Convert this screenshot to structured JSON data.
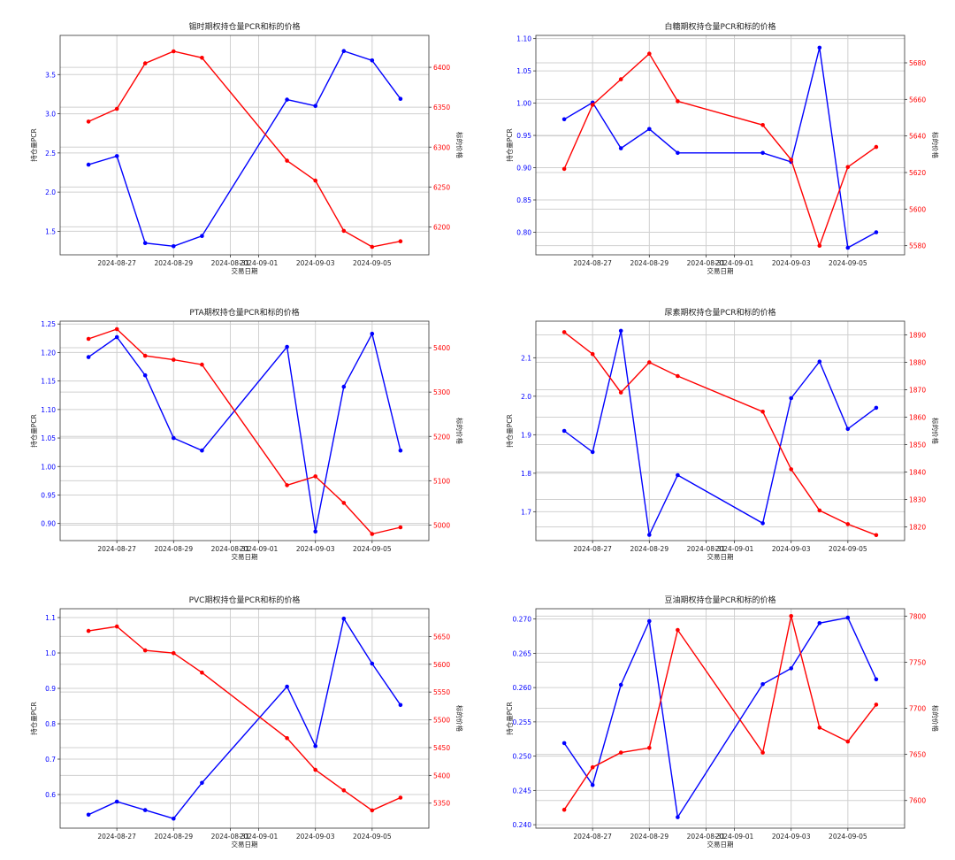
{
  "colors": {
    "pcr": "#0000ff",
    "price": "#ff0000",
    "grid": "#d0d0d0",
    "axis": "#333333"
  },
  "chart_data": [
    {
      "type": "line",
      "title": "锡时期权持仓量PCR和标的价格",
      "xlabel": "交易日期",
      "ylabel": "持仓量PCR",
      "ylabel_right": "标的价格",
      "x_ticks": [
        "2024-08-27",
        "2024-08-29",
        "2024-08-31",
        "2024-09-01",
        "2024-09-03",
        "2024-09-05"
      ],
      "x": [
        "2024-08-26",
        "2024-08-27",
        "2024-08-28",
        "2024-08-29",
        "2024-08-30",
        "2024-09-02",
        "2024-09-03",
        "2024-09-04",
        "2024-09-05",
        "2024-09-06"
      ],
      "xlim": [
        "2024-08-25",
        "2024-09-07"
      ],
      "grid": true,
      "ylim": [
        1.2,
        4.0
      ],
      "y_ticks": [
        1.5,
        2.0,
        2.5,
        3.0,
        3.5
      ],
      "y_tick_labels": [
        "1.5",
        "2.0",
        "2.5",
        "3.0",
        "3.5"
      ],
      "ylim_right": [
        6165,
        6440
      ],
      "y_ticks_right": [
        6200,
        6250,
        6300,
        6350,
        6400
      ],
      "y_tick_labels_right": [
        "6200",
        "6250",
        "6300",
        "6350",
        "6400"
      ],
      "series": [
        {
          "values": [
            2.35,
            2.46,
            1.35,
            1.31,
            1.44,
            3.18,
            3.1,
            3.8,
            3.68,
            3.19
          ],
          "axis": "left"
        },
        {
          "values": [
            6332,
            6348,
            6405,
            6420,
            6412,
            6283,
            6258,
            6195,
            6175,
            6182
          ],
          "axis": "right"
        }
      ]
    },
    {
      "type": "line",
      "title": "白糖期权持仓量PCR和标的价格",
      "xlabel": "交易日期",
      "ylabel": "持仓量PCR",
      "ylabel_right": "标的价格",
      "x_ticks": [
        "2024-08-27",
        "2024-08-29",
        "2024-08-31",
        "2024-09-01",
        "2024-09-03",
        "2024-09-05"
      ],
      "x": [
        "2024-08-26",
        "2024-08-27",
        "2024-08-28",
        "2024-08-29",
        "2024-08-30",
        "2024-09-02",
        "2024-09-03",
        "2024-09-04",
        "2024-09-05",
        "2024-09-06"
      ],
      "xlim": [
        "2024-08-25",
        "2024-09-07"
      ],
      "grid": true,
      "ylim": [
        0.765,
        1.105
      ],
      "y_ticks": [
        0.8,
        0.85,
        0.9,
        0.95,
        1.0,
        1.05,
        1.1
      ],
      "y_tick_labels": [
        "0.80",
        "0.85",
        "0.90",
        "0.95",
        "1.00",
        "1.05",
        "1.10"
      ],
      "ylim_right": [
        5575,
        5695
      ],
      "y_ticks_right": [
        5580,
        5600,
        5620,
        5640,
        5660,
        5680
      ],
      "y_tick_labels_right": [
        "5580",
        "5600",
        "5620",
        "5640",
        "5660",
        "5680"
      ],
      "series": [
        {
          "values": [
            0.975,
            1.001,
            0.93,
            0.96,
            0.923,
            0.923,
            0.909,
            1.086,
            0.776,
            0.8
          ],
          "axis": "left"
        },
        {
          "values": [
            5622,
            5657,
            5671,
            5685,
            5659,
            5646,
            5627,
            5580,
            5623,
            5634
          ],
          "axis": "right"
        }
      ]
    },
    {
      "type": "line",
      "title": "PTA期权持仓量PCR和标的价格",
      "xlabel": "交易日期",
      "ylabel": "持仓量PCR",
      "ylabel_right": "标的价格",
      "x_ticks": [
        "2024-08-27",
        "2024-08-29",
        "2024-08-31",
        "2024-09-01",
        "2024-09-03",
        "2024-09-05"
      ],
      "x": [
        "2024-08-26",
        "2024-08-27",
        "2024-08-28",
        "2024-08-29",
        "2024-08-30",
        "2024-09-02",
        "2024-09-03",
        "2024-09-04",
        "2024-09-05",
        "2024-09-06"
      ],
      "xlim": [
        "2024-08-25",
        "2024-09-07"
      ],
      "grid": true,
      "ylim": [
        0.87,
        1.255
      ],
      "y_ticks": [
        0.9,
        0.95,
        1.0,
        1.05,
        1.1,
        1.15,
        1.2,
        1.25
      ],
      "y_tick_labels": [
        "0.90",
        "0.95",
        "1.00",
        "1.05",
        "1.10",
        "1.15",
        "1.20",
        "1.25"
      ],
      "ylim_right": [
        4965,
        5460
      ],
      "y_ticks_right": [
        5000,
        5100,
        5200,
        5300,
        5400
      ],
      "y_tick_labels_right": [
        "5000",
        "5100",
        "5200",
        "5300",
        "5400"
      ],
      "series": [
        {
          "values": [
            1.192,
            1.227,
            1.16,
            1.05,
            1.028,
            1.21,
            0.886,
            1.14,
            1.233,
            1.028
          ],
          "axis": "left"
        },
        {
          "values": [
            5420,
            5442,
            5382,
            5373,
            5362,
            5090,
            5110,
            5050,
            4980,
            4995
          ],
          "axis": "right"
        }
      ]
    },
    {
      "type": "line",
      "title": "尿素期权持仓量PCR和标的价格",
      "xlabel": "交易日期",
      "ylabel": "持仓量PCR",
      "ylabel_right": "标的价格",
      "x_ticks": [
        "2024-08-27",
        "2024-08-29",
        "2024-08-31",
        "2024-09-01",
        "2024-09-03",
        "2024-09-05"
      ],
      "x": [
        "2024-08-26",
        "2024-08-27",
        "2024-08-28",
        "2024-08-29",
        "2024-08-30",
        "2024-09-02",
        "2024-09-03",
        "2024-09-04",
        "2024-09-05",
        "2024-09-06"
      ],
      "xlim": [
        "2024-08-25",
        "2024-09-07"
      ],
      "grid": true,
      "ylim": [
        1.625,
        2.195
      ],
      "y_ticks": [
        1.7,
        1.8,
        1.9,
        2.0,
        2.1
      ],
      "y_tick_labels": [
        "1.7",
        "1.8",
        "1.9",
        "2.0",
        "2.1"
      ],
      "ylim_right": [
        1815,
        1895
      ],
      "y_ticks_right": [
        1820,
        1830,
        1840,
        1850,
        1860,
        1870,
        1880,
        1890
      ],
      "y_tick_labels_right": [
        "1820",
        "1830",
        "1840",
        "1850",
        "1860",
        "1870",
        "1880",
        "1890"
      ],
      "series": [
        {
          "values": [
            1.91,
            1.855,
            2.17,
            1.64,
            1.795,
            1.67,
            1.995,
            2.09,
            1.915,
            1.97
          ],
          "axis": "left"
        },
        {
          "values": [
            1891,
            1883,
            1869,
            1880,
            1875,
            1862,
            1841,
            1826,
            1821,
            1817
          ],
          "axis": "right"
        }
      ]
    },
    {
      "type": "line",
      "title": "PVC期权持仓量PCR和标的价格",
      "xlabel": "交易日期",
      "ylabel": "持仓量PCR",
      "ylabel_right": "标的价格",
      "x_ticks": [
        "2024-08-27",
        "2024-08-29",
        "2024-08-31",
        "2024-09-01",
        "2024-09-03",
        "2024-09-05"
      ],
      "x": [
        "2024-08-26",
        "2024-08-27",
        "2024-08-28",
        "2024-08-29",
        "2024-08-30",
        "2024-09-02",
        "2024-09-03",
        "2024-09-04",
        "2024-09-05",
        "2024-09-06"
      ],
      "xlim": [
        "2024-08-25",
        "2024-09-07"
      ],
      "grid": true,
      "ylim": [
        0.505,
        1.125
      ],
      "y_ticks": [
        0.6,
        0.7,
        0.8,
        0.9,
        1.0,
        1.1
      ],
      "y_tick_labels": [
        "0.6",
        "0.7",
        "0.8",
        "0.9",
        "1.0",
        "1.1"
      ],
      "ylim_right": [
        5305,
        5700
      ],
      "y_ticks_right": [
        5350,
        5400,
        5450,
        5500,
        5550,
        5600,
        5650
      ],
      "y_tick_labels_right": [
        "5350",
        "5400",
        "5450",
        "5500",
        "5550",
        "5600",
        "5650"
      ],
      "series": [
        {
          "values": [
            0.543,
            0.58,
            0.556,
            0.532,
            0.633,
            0.905,
            0.737,
            1.097,
            0.97,
            0.853
          ],
          "axis": "left"
        },
        {
          "values": [
            5660,
            5668,
            5625,
            5620,
            5585,
            5467,
            5410,
            5373,
            5337,
            5360
          ],
          "axis": "right"
        }
      ]
    },
    {
      "type": "line",
      "title": "豆油期权持仓量PCR和标的价格",
      "xlabel": "交易日期",
      "ylabel": "持仓量PCR",
      "ylabel_right": "标的价格",
      "x_ticks": [
        "2024-08-27",
        "2024-08-29",
        "2024-08-31",
        "2024-09-01",
        "2024-09-03",
        "2024-09-05"
      ],
      "x": [
        "2024-08-26",
        "2024-08-27",
        "2024-08-28",
        "2024-08-29",
        "2024-08-30",
        "2024-09-02",
        "2024-09-03",
        "2024-09-04",
        "2024-09-05",
        "2024-09-06"
      ],
      "xlim": [
        "2024-08-25",
        "2024-09-07"
      ],
      "grid": true,
      "ylim": [
        0.2395,
        0.2715
      ],
      "y_ticks": [
        0.24,
        0.245,
        0.25,
        0.255,
        0.26,
        0.265,
        0.27
      ],
      "y_tick_labels": [
        "0.240",
        "0.245",
        "0.250",
        "0.255",
        "0.260",
        "0.265",
        "0.270"
      ],
      "ylim_right": [
        7570,
        7808
      ],
      "y_ticks_right": [
        7600,
        7650,
        7700,
        7750,
        7800
      ],
      "y_tick_labels_right": [
        "7600",
        "7650",
        "7700",
        "7750",
        "7800"
      ],
      "series": [
        {
          "values": [
            0.2519,
            0.2458,
            0.2604,
            0.2697,
            0.2411,
            0.2605,
            0.2628,
            0.2694,
            0.2702,
            0.2612
          ],
          "axis": "left"
        },
        {
          "values": [
            7590,
            7636,
            7652,
            7657,
            7785,
            7652,
            7800,
            7679,
            7664,
            7704
          ],
          "axis": "right"
        }
      ]
    }
  ]
}
